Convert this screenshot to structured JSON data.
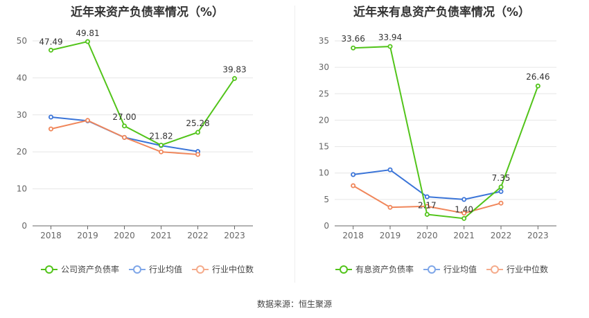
{
  "chart_data": [
    {
      "type": "line",
      "title": "近年来资产负债率情况（%）",
      "categories": [
        "2018",
        "2019",
        "2020",
        "2021",
        "2022",
        "2023"
      ],
      "ylim": [
        0,
        50
      ],
      "yticks": [
        0,
        10,
        20,
        30,
        40,
        50
      ],
      "grid": true,
      "legend_position": "bottom",
      "series": [
        {
          "name": "公司资产负债率",
          "color": "#52c41a",
          "values": [
            47.49,
            49.81,
            27.0,
            21.82,
            25.28,
            39.83
          ],
          "labels": [
            "47.49",
            "49.81",
            "27.00",
            "21.82",
            "25.28",
            "39.83"
          ]
        },
        {
          "name": "行业均值",
          "color": "#3a74d8",
          "values": [
            29.4,
            28.4,
            23.9,
            21.7,
            20.1,
            null
          ]
        },
        {
          "name": "行业中位数",
          "color": "#f0865a",
          "values": [
            26.2,
            28.5,
            23.9,
            20.0,
            19.3,
            null
          ]
        }
      ]
    },
    {
      "type": "line",
      "title": "近年来有息资产负债率情况（%）",
      "categories": [
        "2018",
        "2019",
        "2020",
        "2021",
        "2022",
        "2023"
      ],
      "ylim": [
        0,
        35
      ],
      "yticks": [
        0,
        5,
        10,
        15,
        20,
        25,
        30,
        35
      ],
      "grid": true,
      "legend_position": "bottom",
      "series": [
        {
          "name": "有息资产负债率",
          "color": "#52c41a",
          "values": [
            33.66,
            33.94,
            2.17,
            1.4,
            7.35,
            26.46
          ],
          "labels": [
            "33.66",
            "33.94",
            "2.17",
            "1.40",
            "7.35",
            "26.46"
          ]
        },
        {
          "name": "行业均值",
          "color": "#3a74d8",
          "values": [
            9.7,
            10.6,
            5.5,
            5.0,
            6.5,
            null
          ]
        },
        {
          "name": "行业中位数",
          "color": "#f0865a",
          "values": [
            7.6,
            3.5,
            3.7,
            2.4,
            4.3,
            null
          ]
        }
      ]
    }
  ],
  "legend_colors": {
    "公司资产负债率": "#52c41a",
    "有息资产负债率": "#52c41a",
    "行业均值": "#7ea6e8",
    "行业中位数": "#f5ab8b"
  },
  "footer": {
    "source": "数据来源：恒生聚源"
  }
}
